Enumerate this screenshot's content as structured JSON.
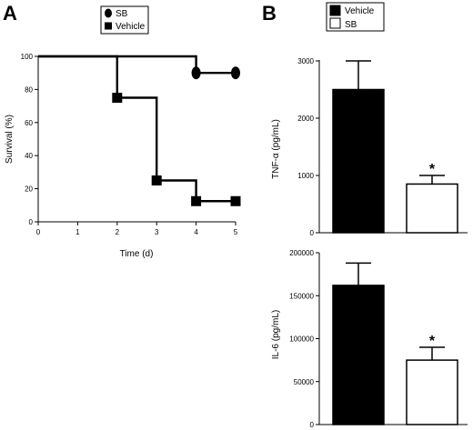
{
  "panels": [
    "A",
    "B"
  ],
  "chart_data": [
    {
      "type": "line",
      "panel": "A",
      "step": true,
      "xlabel": "Time (d)",
      "ylabel": "Survival (%)",
      "xlim": [
        0,
        5
      ],
      "ylim": [
        0,
        100
      ],
      "xticks": [
        "0",
        "1",
        "2",
        "3",
        "4",
        "5"
      ],
      "yticks": [
        "0",
        "20",
        "40",
        "60",
        "80",
        "100"
      ],
      "legend": {
        "position": "top",
        "entries": [
          {
            "name": "SB",
            "marker": "circle"
          },
          {
            "name": "Vehicle",
            "marker": "square"
          }
        ]
      },
      "series": [
        {
          "name": "SB",
          "marker": "circle",
          "color": "#000000",
          "x": [
            0,
            4,
            5
          ],
          "y": [
            100,
            90,
            90
          ],
          "marked": [
            false,
            true,
            true
          ]
        },
        {
          "name": "Vehicle",
          "marker": "square",
          "color": "#000000",
          "x": [
            0,
            2,
            3,
            4,
            5
          ],
          "y": [
            100,
            75,
            25,
            12.5,
            12.5
          ],
          "marked": [
            false,
            true,
            true,
            true,
            true
          ]
        }
      ]
    },
    {
      "type": "bar",
      "panel": "B",
      "ylabel": "TNF-α (pg/mL)",
      "ylim": [
        0,
        3000
      ],
      "yticks": [
        "0",
        "1000",
        "2000",
        "3000"
      ],
      "legend": {
        "position": "top",
        "entries": [
          {
            "name": "Vehicle",
            "fill": "#000000"
          },
          {
            "name": "SB",
            "fill": "#ffffff"
          }
        ]
      },
      "bars": [
        {
          "name": "Vehicle",
          "value": 2500,
          "error": 500,
          "fill": "#000000",
          "annotation": ""
        },
        {
          "name": "SB",
          "value": 850,
          "error": 150,
          "fill": "#ffffff",
          "annotation": "*"
        }
      ]
    },
    {
      "type": "bar",
      "panel": "B",
      "ylabel": "IL-6 (pg/mL)",
      "ylim": [
        0,
        200000
      ],
      "yticks": [
        "0",
        "50000",
        "100000",
        "150000",
        "200000"
      ],
      "bars": [
        {
          "name": "Vehicle",
          "value": 162000,
          "error": 26000,
          "fill": "#000000",
          "annotation": ""
        },
        {
          "name": "SB",
          "value": 75000,
          "error": 15000,
          "fill": "#ffffff",
          "annotation": "*"
        }
      ]
    }
  ]
}
